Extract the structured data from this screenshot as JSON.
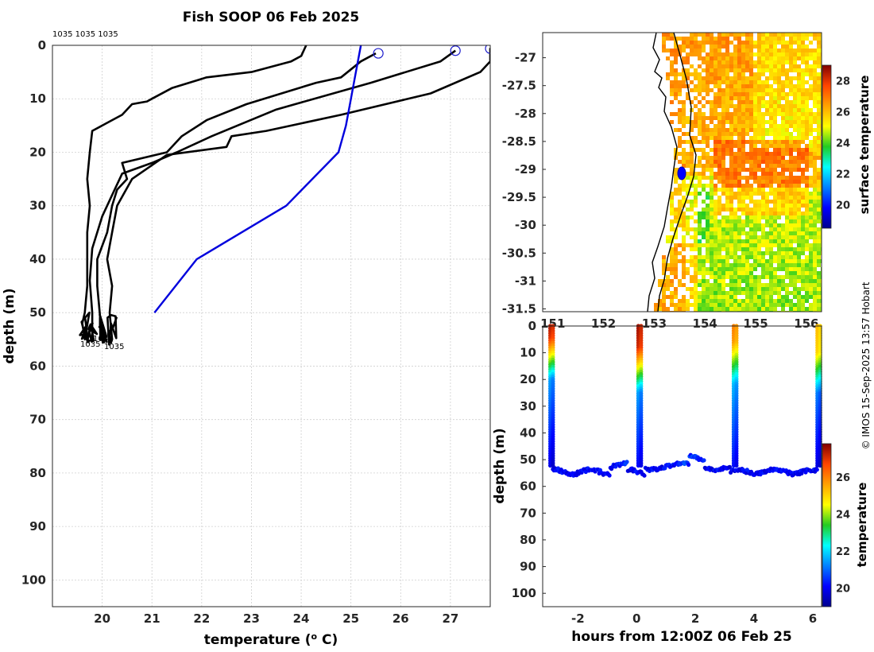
{
  "title": "Fish SOOP 06 Feb 2025",
  "credit": "© IMOS 15-Sep-2025 13:57 Hobart",
  "colors": {
    "profile": "#000000",
    "climatology": "#0000dd",
    "marker": "#1a1acc"
  },
  "chart_data": [
    {
      "type": "line",
      "name": "profiles",
      "xlabel": "temperature (° C)",
      "ylabel": "depth (m)",
      "xlim": [
        19,
        27.8
      ],
      "ylim": [
        0,
        105
      ],
      "xticks": [
        20,
        21,
        22,
        23,
        24,
        25,
        26,
        27
      ],
      "yticks": [
        0,
        10,
        20,
        30,
        40,
        50,
        60,
        70,
        80,
        90,
        100
      ],
      "top_labels": "1035 1035 1035",
      "bottom_labels": [
        "1035",
        "1035",
        "1035"
      ],
      "series": [
        {
          "name": "profile-1",
          "color": "#000000",
          "points": [
            [
              24.1,
              0
            ],
            [
              24,
              2
            ],
            [
              23.8,
              3
            ],
            [
              23,
              5
            ],
            [
              22.1,
              6
            ],
            [
              21.4,
              8
            ],
            [
              21,
              10
            ],
            [
              20.9,
              10.5
            ],
            [
              20.6,
              11
            ],
            [
              20.4,
              13
            ],
            [
              20.2,
              14
            ],
            [
              20,
              15
            ],
            [
              19.8,
              16
            ],
            [
              19.75,
              20
            ],
            [
              19.7,
              25
            ],
            [
              19.75,
              30
            ],
            [
              19.7,
              35
            ],
            [
              19.7,
              40
            ],
            [
              19.7,
              45
            ],
            [
              19.65,
              50
            ],
            [
              19.6,
              52
            ],
            [
              19.65,
              55
            ]
          ]
        },
        {
          "name": "profile-2",
          "color": "#000000",
          "points": [
            [
              25.5,
              1.5
            ],
            [
              25.2,
              3
            ],
            [
              24.8,
              6
            ],
            [
              24.3,
              7
            ],
            [
              22.9,
              11
            ],
            [
              22.1,
              14
            ],
            [
              21.6,
              17
            ],
            [
              21.3,
              20
            ],
            [
              20.4,
              22
            ],
            [
              20.5,
              25
            ],
            [
              20.3,
              27
            ],
            [
              20.2,
              30
            ],
            [
              20.1,
              35
            ],
            [
              19.9,
              40
            ],
            [
              19.9,
              45
            ],
            [
              19.95,
              50
            ],
            [
              20,
              55
            ]
          ]
        },
        {
          "name": "profile-3",
          "color": "#000000",
          "points": [
            [
              27.1,
              1
            ],
            [
              26.8,
              3
            ],
            [
              25.4,
              7
            ],
            [
              23.5,
              12
            ],
            [
              22.2,
              17
            ],
            [
              21.5,
              20
            ],
            [
              21,
              22
            ],
            [
              20.4,
              24
            ],
            [
              20.2,
              28
            ],
            [
              20,
              32
            ],
            [
              19.8,
              38
            ],
            [
              19.75,
              44
            ],
            [
              19.8,
              50
            ],
            [
              19.8,
              55
            ]
          ]
        },
        {
          "name": "profile-4",
          "color": "#000000",
          "points": [
            [
              27.8,
              0.5
            ],
            [
              27.8,
              3
            ],
            [
              27.6,
              5
            ],
            [
              26.6,
              9
            ],
            [
              24.8,
              13
            ],
            [
              23.3,
              16
            ],
            [
              22.6,
              17
            ],
            [
              22.5,
              19
            ],
            [
              21.3,
              20.5
            ],
            [
              20.6,
              25
            ],
            [
              20.3,
              30
            ],
            [
              20.2,
              35
            ],
            [
              20.1,
              40
            ],
            [
              20.2,
              45
            ],
            [
              20.15,
              50
            ],
            [
              20.2,
              55
            ]
          ]
        },
        {
          "name": "climatology",
          "color": "#0000dd",
          "points": [
            [
              25.2,
              0
            ],
            [
              25.1,
              5
            ],
            [
              25,
              10
            ],
            [
              24.9,
              15
            ],
            [
              24.75,
              20
            ],
            [
              23.7,
              30
            ],
            [
              21.9,
              40
            ],
            [
              21.05,
              50
            ]
          ]
        }
      ],
      "surface_markers": [
        [
          25.55,
          1.5
        ],
        [
          27.1,
          1
        ],
        [
          27.8,
          0.6
        ]
      ]
    },
    {
      "type": "heatmap",
      "name": "surface-temperature-map",
      "xlim": [
        150.8,
        156.3
      ],
      "ylim": [
        -31.55,
        -26.55
      ],
      "xticks": [
        151,
        152,
        153,
        154,
        155,
        156
      ],
      "yticks": [
        -27,
        -27.5,
        -28,
        -28.5,
        -29,
        -29.5,
        -30,
        -30.5,
        -31,
        -31.5
      ],
      "colorbar": {
        "label": "surface temperature",
        "range": [
          18.5,
          29
        ],
        "ticks": [
          20,
          22,
          24,
          26,
          28
        ]
      },
      "track_point": [
        153.55,
        -29.05
      ]
    },
    {
      "type": "scatter",
      "name": "depth-time-section",
      "xlabel": "hours from 12:00Z 06 Feb 25",
      "ylabel": "depth (m)",
      "xlim": [
        -3.2,
        6.3
      ],
      "ylim": [
        0,
        105
      ],
      "xticks": [
        -2,
        0,
        2,
        4,
        6
      ],
      "yticks": [
        0,
        10,
        20,
        30,
        40,
        50,
        60,
        70,
        80,
        90,
        100
      ],
      "colorbar": {
        "label": "temperature",
        "range": [
          19,
          27.8
        ],
        "ticks": [
          20,
          22,
          24,
          26
        ]
      },
      "profile_times": [
        -2.9,
        0.1,
        3.35,
        6.2
      ]
    }
  ]
}
